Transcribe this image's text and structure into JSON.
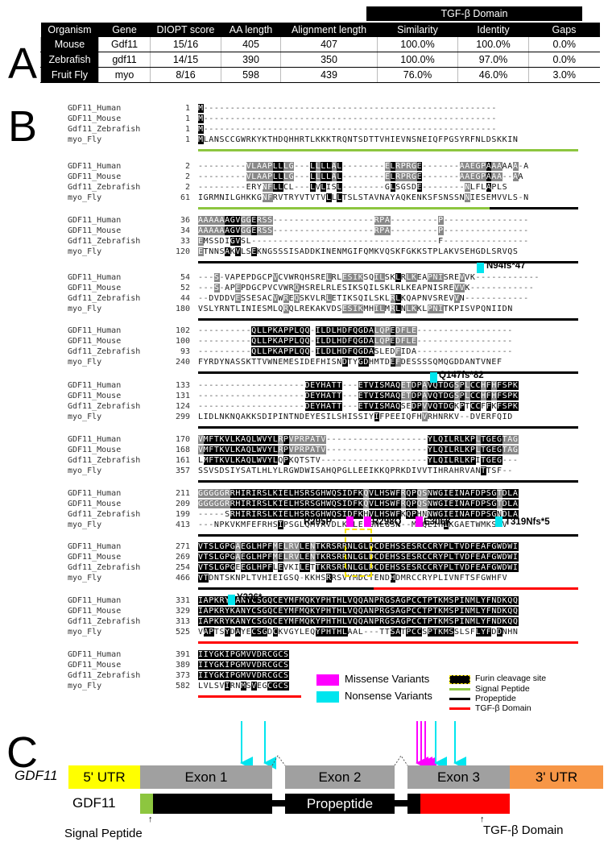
{
  "panels": {
    "a": "A",
    "b": "B",
    "c": "C"
  },
  "table": {
    "group_header": "TGF-β Domain",
    "headers": [
      "Organism",
      "Gene",
      "DIOPT score",
      "AA length",
      "Alignment length",
      "Similarity",
      "Identity",
      "Gaps"
    ],
    "rows": [
      [
        "Mouse",
        "Gdf11",
        "15/16",
        "405",
        "407",
        "100.0%",
        "100.0%",
        "0.0%"
      ],
      [
        "Zebrafish",
        "gdf11",
        "14/15",
        "390",
        "350",
        "100.0%",
        "97.0%",
        "0.0%"
      ],
      [
        "Fruit Fly",
        "myo",
        "8/16",
        "598",
        "439",
        "76.0%",
        "46.0%",
        "3.0%"
      ]
    ]
  },
  "alignment": {
    "species": [
      "GDF11_Human",
      "GDF11_Mouse",
      "Gdf11_Zebrafish",
      "myo_Fly"
    ],
    "blocks": [
      {
        "start": [
          "1",
          "1",
          "1",
          "1"
        ],
        "seqs": [
          "M-------------------------------------------------------",
          "M-------------------------------------------------------",
          "M-------------------------------------------------------",
          "MLANSCCGWRKYKTHDQHHRTLKKKTRQNTSDTTVHIEVNSNEIQFPGSYRFNLDSKKIN"
        ],
        "bar": "green"
      },
      {
        "start": [
          "2",
          "2",
          "2",
          "61"
        ],
        "seqs": [
          "---------VLAAPLLLG---LLLLAL--------ELRPRGE-------AAEGPAAAAAA-A",
          "---------VLAAPLLLG---LLLLAL--------ELRPRGE-------AAEGPAAA--AA",
          "---------ERYNFLLCL---LVLISL--------GLSGSDE--------NLFLAPLS",
          "IGRMNILGHKKGNFRVTRYVTVTVLLLTSLSTAVNAYAQKENKSFSNSSNNIESEMVVLS-N"
        ],
        "bar": "green"
      },
      {
        "start": [
          "36",
          "34",
          "33",
          "120"
        ],
        "seqs": [
          "AAAAAAGVGGERSS-------------------RPA---------P----------------",
          "AAAAAAGVGGERSS-------------------RPA---------P----------------",
          "EMSSDIGVSL-----------------------------------F----------------",
          "ETNNSAKVLSEKNGSSSISADDKINENMGIFQMKVQSKFGKKSTPLAKVSEHGDLSRVQS"
        ],
        "bar": "black"
      },
      {
        "start": [
          "54",
          "52",
          "44",
          "180"
        ],
        "seqs": [
          "---S-VAPEPDGCPVCVWRQHSRELRLESIKSQILSKLRLKEAPNISREVVK------------",
          "---S-APEPDGCPVCVWRQHSRELRLESIKSQILSKLRLKEAPNISREVVK------------",
          "--DVDDVESSESACVWREQSKVLRLETIKSQILSKLRLKQAPNVSREVVN------------",
          "VSLYRNTLINIESMLQRQLREKAKVDSESIKMHILMRLNLKKLPNITKPISVPQNIIDN"
        ],
        "bar": "black"
      },
      {
        "start": [
          "102",
          "100",
          "93",
          "240"
        ],
        "seqs": [
          "----------QLLPKAPPLQQ-ILDLHDFQGDALQPEDFLE------------------",
          "----------QLLPKAPPLQQ-ILDLHDFQGDALQPEDFLE------------------",
          "----------QLLPKAPPLQQ-ILDLHDFQGDASLEDFIDA------------------",
          "FYRDYNASSKTTVWNEMESIDEFHISNDTYGDHMTDEFDESSSSQMQGDDANTVNEF"
        ],
        "bar": "black"
      },
      {
        "start": [
          "133",
          "131",
          "124",
          "299"
        ],
        "seqs": [
          "--------------------DEYHATT---ETVISMAQETDPAVQTDGSPLCCHFHFSPK",
          "--------------------DEYHATT---ETVISMAQETDPAVQTDGSPLCCHFHFSPK",
          "--------------------DEYHATT---ETVISMAQSEDPVVQTDGKPTCCFFKFSPK",
          "LIDLNKNQAKKSDIPINTNDEYESILSHISSIYIFPEEIQFHVRHNRKV--DVERFQID"
        ],
        "bar": "black"
      },
      {
        "start": [
          "170",
          "168",
          "161",
          "357"
        ],
        "seqs": [
          "VMFTKVLKAQLWVYLRPVPRPATV-------------------YLQILRLKPLTGEGTAG",
          "VMFTKVLKAQLWVYLRPVPRPATV-------------------YLQILRLKPLTGEGTAG",
          "LMFTKVLKAQLWVYLQPKQTSTV--------------------YLQILRLKPITGEG---",
          "SSVSDSIYSATLHLYLRGWDWISAHQPGLLEEIKKQPRKDIVVTIHRAHRVANTTSF--"
        ],
        "bar": "black"
      },
      {
        "start": [
          "211",
          "209",
          "199",
          "413"
        ],
        "seqs": [
          "GGGGGRRHIRIRSLKIELHSRSGHWQSIDFKQVLHSWFRQPQSNWGIEINAFDPSGTDLA",
          "GGGGGRRHIRIRSLKIELHSRSGHWQSIDFKQVLHSWFRQPQSNWGIEINAFDPSGTDLA",
          "-----SRHIRIRSLKIELHSRSGHWQSIDFKHVLHSWFKQPHNNWGIEINAFDPSGNDLA",
          "---NPKVKMFEFRHSIPSGLQMVAVDLKSLEIGNLGSN--MTQEIHIKGAETWMKSLV"
        ],
        "bar": "black"
      },
      {
        "start": [
          "271",
          "269",
          "254",
          "466"
        ],
        "seqs": [
          "VTSLGPGAEGLHPFMELRVLENTKRSRRNLGLDCDEHSSESRCCRYPLTVDFEAFGWDWI",
          "VTSLGPGAEGLHPFMELRVLENTKRSRRNLGLDCDEHSSESRCCRYPLTVDFEAFGWDWI",
          "VTSLGPGEEGLHPFLEVKILETTKRSRRNLGLDCDEHSSESRCCRYPLTVDFEAFGWDWI",
          "VTDNTSKNPLTVHIEIGSQ-KKHSRRSVYMDCTENDHDMRCCRYPLIVNFTSFGWHFV"
        ],
        "bar": "mixed"
      },
      {
        "start": [
          "331",
          "329",
          "313",
          "525"
        ],
        "seqs": [
          "IAPKRYKANYCSGQCEYMFMQKYPHTHLVQQANPRGSAGPCCTPTKMSPINMLYFNDKQQ",
          "IAPKRYKANYCSGQCEYMFMQKYPHTHLVQQANPRGSAGPCCTPTKMSPINMLYFNDKQQ",
          "IAPKRYKANYCSGQCEYMFMQKYPHTHLVQQANPRGSAGPCCTPTKMSPINMLYFNDKQQ",
          "VAPTSYDAYECSGDCKVGYLEQYPHTHLAAL---TTSATPCCSPTKMSSLSFLYFDDNHN"
        ],
        "bar": "red"
      },
      {
        "start": [
          "391",
          "389",
          "373",
          "582"
        ],
        "seqs": [
          "IIYGKIPGMVVDRCGCS",
          "IIYGKIPGMVVDRCGCS",
          "IIYGKIPGMVVDRCGCS",
          "LVLSVIRNMSVEGCGCS"
        ],
        "bar": "red"
      }
    ],
    "annotations": {
      "n94": "N94fs*47",
      "q147": "Q147fs*82",
      "r295": "R295P",
      "r298": "R298Q",
      "e306": "E306K",
      "t319": "T319Nfs*5",
      "y336": "Y336*"
    },
    "colors": {
      "missense": "#ff00ff",
      "nonsense": "#00e5ee",
      "signal": "#8dc63f",
      "propeptide": "#000000",
      "tgf": "#ff0000",
      "furin": "#f7e400"
    }
  },
  "legend": {
    "missense": "Missense Variants",
    "nonsense": "Nonsense Variants",
    "furin": "Furin cleavage site",
    "signal": "Signal Peptide",
    "propeptide": "Propeptide",
    "tgf": "TGF-β Domain"
  },
  "gene": {
    "name": "GDF11",
    "utr5": "5' UTR",
    "exon1": "Exon 1",
    "exon2": "Exon 2",
    "exon3": "Exon 3",
    "utr3": "3' UTR",
    "protein": "GDF11",
    "propeptide": "Propeptide",
    "signal_peptide": "Signal Peptide",
    "tgf_domain": "TGF-β Domain",
    "colors": {
      "utr5": "#ffff00",
      "exon": "#a0a0a0",
      "utr3": "#f79646",
      "signal": "#8dc63f",
      "tgf": "#ff0000"
    }
  }
}
